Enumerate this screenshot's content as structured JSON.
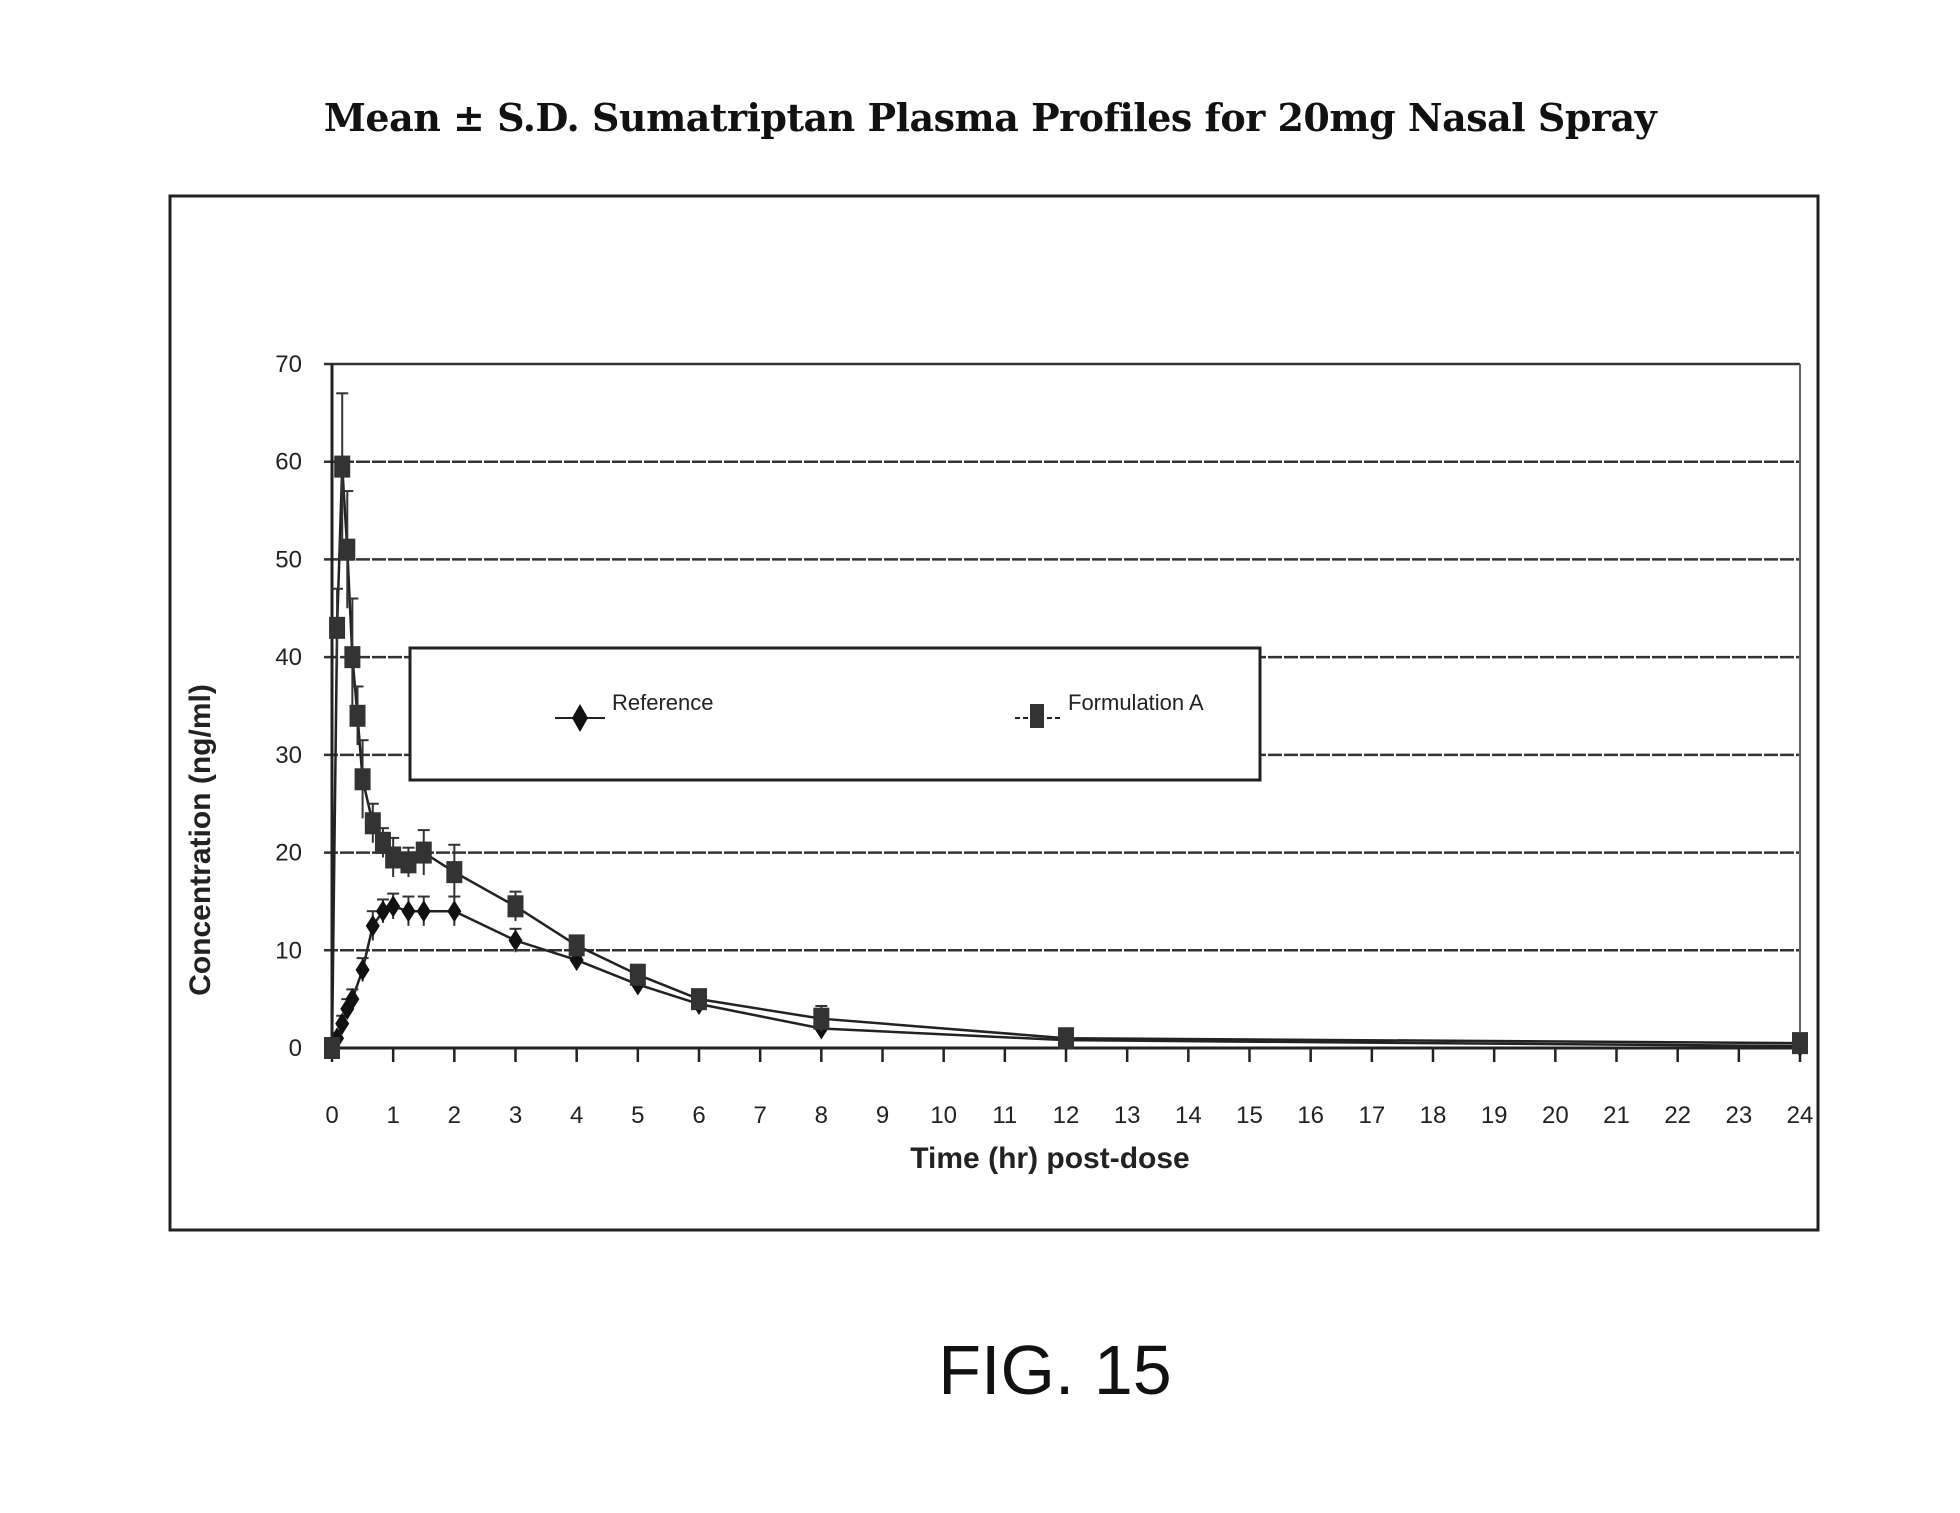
{
  "chart_data": {
    "type": "line",
    "title": "Mean ± S.D. Sumatriptan Plasma Profiles for 20mg Nasal Spray",
    "xlabel": "Time (hr) post-dose",
    "ylabel": "Concentration (ng/ml)",
    "xlim": [
      0,
      24
    ],
    "ylim": [
      0,
      70
    ],
    "xticks": [
      0,
      1,
      2,
      3,
      4,
      5,
      6,
      7,
      8,
      9,
      10,
      11,
      12,
      13,
      14,
      15,
      16,
      17,
      18,
      19,
      20,
      21,
      22,
      23,
      24
    ],
    "yticks": [
      0,
      10,
      20,
      30,
      40,
      50,
      60,
      70
    ],
    "grid": "horizontal",
    "legend_position": "upper-middle",
    "series": [
      {
        "name": "Reference",
        "marker": "diamond",
        "x": [
          0,
          0.083,
          0.167,
          0.25,
          0.333,
          0.5,
          0.667,
          0.833,
          1,
          1.25,
          1.5,
          2,
          3,
          4,
          5,
          6,
          8,
          12,
          24
        ],
        "y": [
          0,
          1,
          2.5,
          4,
          5,
          8,
          12.5,
          14,
          14.5,
          14,
          14,
          14,
          11,
          9,
          6.5,
          4.5,
          2,
          0.8,
          0.2
        ],
        "sd": [
          0,
          0.5,
          0.8,
          1,
          1,
          1.2,
          1.5,
          1.2,
          1.3,
          1.5,
          1.5,
          1.5,
          1.2,
          1,
          0.8,
          0.8,
          0.6,
          0.3,
          0.2
        ]
      },
      {
        "name": "Formulation A",
        "marker": "square",
        "x": [
          0,
          0.083,
          0.167,
          0.25,
          0.333,
          0.417,
          0.5,
          0.667,
          0.833,
          1,
          1.25,
          1.5,
          2,
          3,
          4,
          5,
          6,
          8,
          12,
          24
        ],
        "y": [
          0,
          43,
          59.5,
          51,
          40,
          34,
          27.5,
          23,
          21,
          19.5,
          19,
          20,
          18,
          14.5,
          10.5,
          7.5,
          5,
          3,
          1,
          0.5
        ],
        "sd": [
          0,
          4,
          7.5,
          6,
          6,
          3,
          4,
          2,
          1.5,
          2,
          1.5,
          2.3,
          2.8,
          1.5,
          1,
          1,
          0.8,
          1.3,
          0.5,
          0.3
        ]
      }
    ]
  },
  "figure_label": "FIG. 15"
}
